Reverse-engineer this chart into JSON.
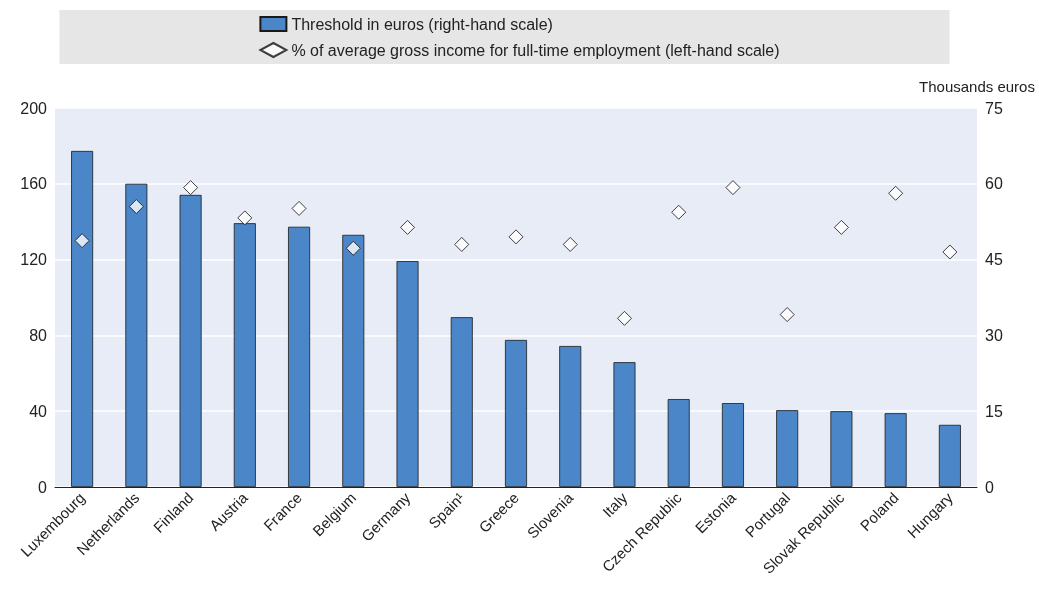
{
  "chart_data": {
    "type": "bar",
    "categories": [
      "Luxembourg",
      "Netherlands",
      "Finland",
      "Austria",
      "France",
      "Belgium",
      "Germany",
      "Spain¹",
      "Greece",
      "Slovenia",
      "Italy",
      "Czech Republic",
      "Estonia",
      "Portugal",
      "Slovak Republic",
      "Poland",
      "Hungary"
    ],
    "series": [
      {
        "name": "Threshold in euros (right-hand scale)",
        "axis": "y2",
        "color": "#4a86c8",
        "values": [
          66.5,
          60.0,
          57.8,
          52.2,
          51.5,
          49.9,
          44.7,
          33.6,
          29.1,
          27.9,
          24.7,
          17.4,
          16.6,
          15.2,
          15.0,
          14.6,
          12.3
        ]
      },
      {
        "name": "% of average gross income for full-time employment (left-hand scale)",
        "type": "scatter",
        "color": "#ffffff",
        "values": [
          130,
          148,
          158,
          142,
          147,
          126,
          137,
          128,
          132,
          128,
          89,
          145,
          158,
          91,
          137,
          155,
          124
        ]
      }
    ],
    "y2label": "Thousands euros",
    "ylim": [
      0,
      200
    ],
    "yticks": [
      0,
      40,
      80,
      120,
      160,
      200
    ],
    "y2lim": [
      0,
      75
    ],
    "y2ticks": [
      0,
      15,
      30,
      45,
      60,
      75
    ],
    "grid": "y",
    "legend": "top",
    "marker": "diamond"
  }
}
